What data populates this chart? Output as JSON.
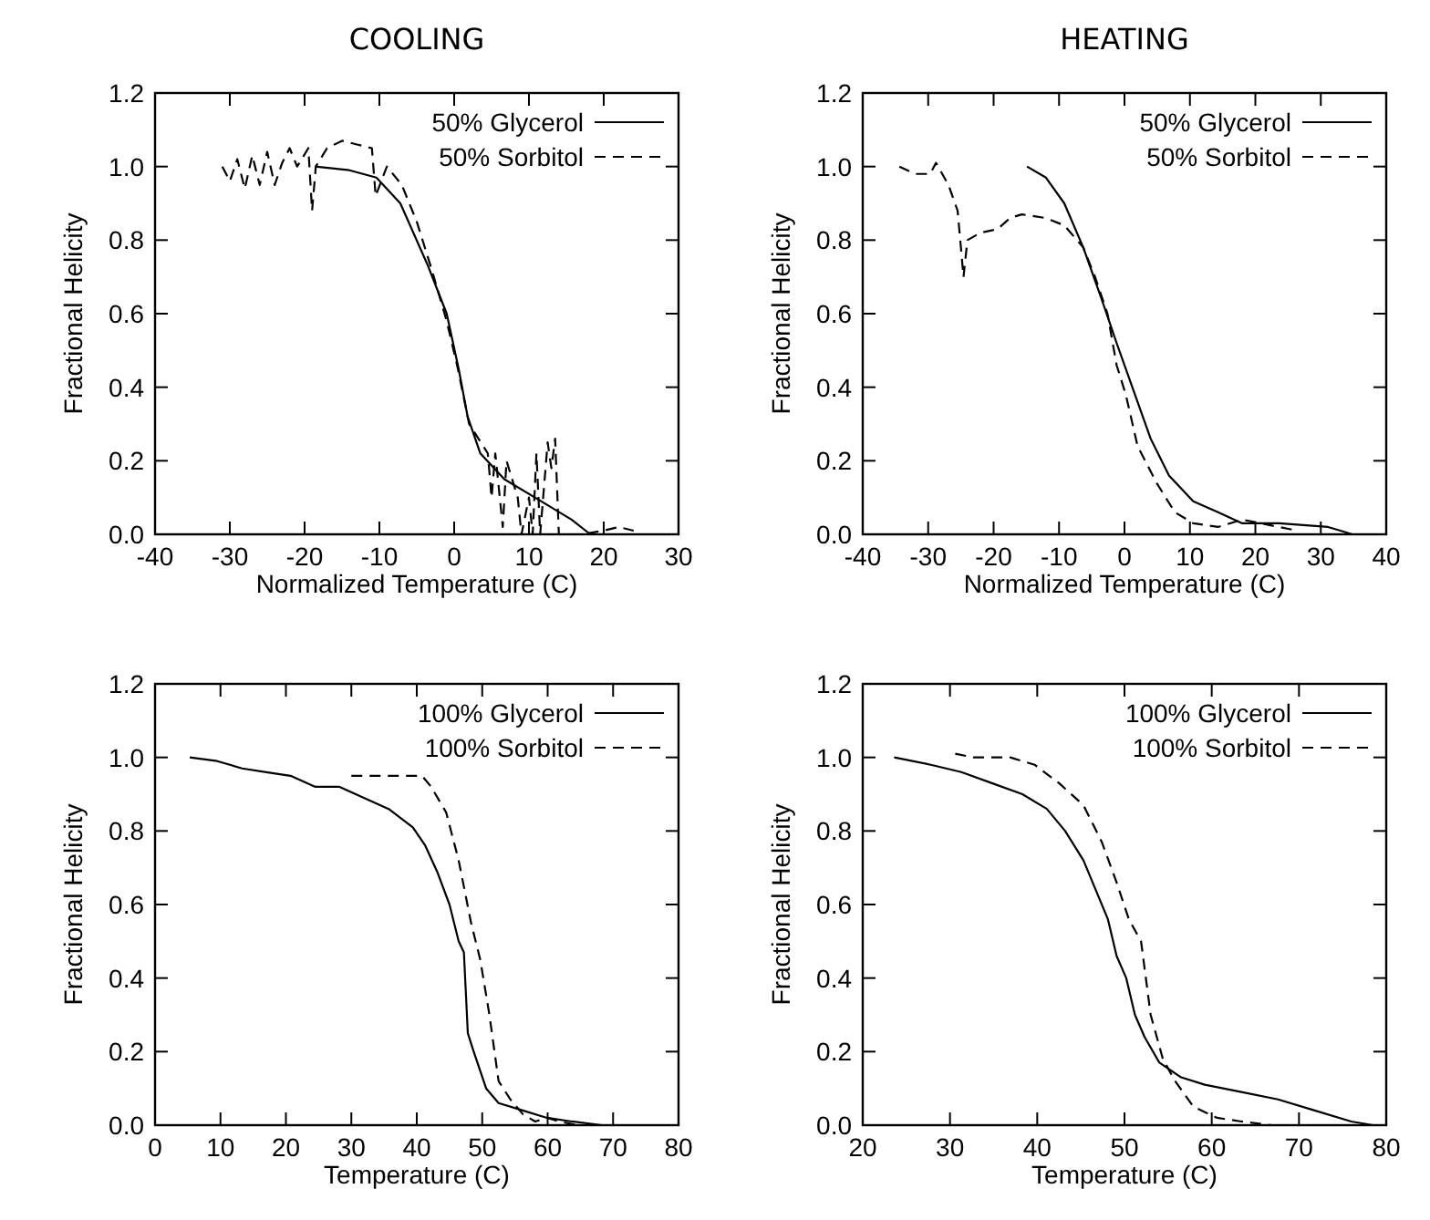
{
  "chart_data": [
    {
      "type": "line",
      "title": "COOLING",
      "xlabel": "Normalized Temperature (C)",
      "ylabel": "Fractional Helicity",
      "xlim": [
        -40,
        30
      ],
      "xticks": [
        -40,
        -30,
        -20,
        -10,
        0,
        10,
        20,
        30
      ],
      "ylim": [
        0,
        1.2
      ],
      "yticks": [
        {
          "value": 0,
          "label": "0.0"
        },
        {
          "value": 0.2,
          "label": "0.2"
        },
        {
          "value": 0.4,
          "label": "0.4"
        },
        {
          "value": 0.6,
          "label": "0.6"
        },
        {
          "value": 0.8,
          "label": "0.8"
        },
        {
          "value": 1,
          "label": "1.0"
        },
        {
          "value": 1.2,
          "label": "1.2"
        }
      ],
      "legend": "top right",
      "grid": false,
      "series": [
        {
          "name": "50% Glycerol",
          "color": "#000000",
          "line_style": "solid",
          "x": [
            -18.6,
            -14,
            -10.4,
            -7.2,
            -3.5,
            -1,
            0.6,
            1.8,
            3.5,
            6.7,
            10.8,
            15.7,
            18.2,
            24.3
          ],
          "values": [
            1.0,
            0.99,
            0.97,
            0.9,
            0.73,
            0.6,
            0.45,
            0.32,
            0.22,
            0.15,
            0.1,
            0.04,
            0.0,
            0.0
          ]
        },
        {
          "name": "50% Sorbitol",
          "color": "#000000",
          "line_style": "dashed",
          "x": [
            -31,
            -30,
            -29,
            -28,
            -27,
            -26,
            -25,
            -24,
            -23,
            -22,
            -21,
            -19.5,
            -19,
            -18.5,
            -17,
            -15,
            -13,
            -11,
            -10.5,
            -9,
            -7,
            -5,
            -3,
            -1,
            0.5,
            2,
            4.5,
            5,
            5.5,
            6.5,
            7,
            8.5,
            9,
            10,
            10.5,
            11,
            11.5,
            12.5,
            13,
            13.5,
            14,
            17,
            20,
            22,
            24
          ],
          "values": [
            1.0,
            0.96,
            1.02,
            0.94,
            1.03,
            0.95,
            1.04,
            0.95,
            1.01,
            1.05,
            1.0,
            1.05,
            0.88,
            1.0,
            1.05,
            1.07,
            1.06,
            1.05,
            0.92,
            1.0,
            0.95,
            0.85,
            0.72,
            0.58,
            0.45,
            0.3,
            0.22,
            0.1,
            0.22,
            0.02,
            0.2,
            0.1,
            0.0,
            0.1,
            0.0,
            0.22,
            0.0,
            0.25,
            0.18,
            0.26,
            0.0,
            0.0,
            0.01,
            0.02,
            0.01
          ]
        }
      ]
    },
    {
      "type": "line",
      "title": "HEATING",
      "xlabel": "Normalized Temperature (C)",
      "ylabel": "Fractional Helicity",
      "xlim": [
        -40,
        40
      ],
      "xticks": [
        -40,
        -30,
        -20,
        -10,
        0,
        10,
        20,
        30,
        40
      ],
      "ylim": [
        0,
        1.2
      ],
      "yticks": [
        {
          "value": 0,
          "label": "0.0"
        },
        {
          "value": 0.2,
          "label": "0.2"
        },
        {
          "value": 0.4,
          "label": "0.4"
        },
        {
          "value": 0.6,
          "label": "0.6"
        },
        {
          "value": 0.8,
          "label": "0.8"
        },
        {
          "value": 1,
          "label": "1.0"
        },
        {
          "value": 1.2,
          "label": "1.2"
        }
      ],
      "legend": "top right",
      "grid": false,
      "series": [
        {
          "name": "50% Glycerol",
          "color": "#000000",
          "line_style": "solid",
          "x": [
            -14.9,
            -12,
            -9.2,
            -6.3,
            -3.5,
            -1.2,
            1.2,
            4,
            6.8,
            10.5,
            14.3,
            18,
            23.6,
            31.1,
            33,
            34.8
          ],
          "values": [
            1.0,
            0.97,
            0.9,
            0.78,
            0.64,
            0.52,
            0.4,
            0.26,
            0.16,
            0.09,
            0.06,
            0.03,
            0.03,
            0.02,
            0.01,
            0.0
          ]
        },
        {
          "name": "50% Sorbitol",
          "color": "#000000",
          "line_style": "dashed",
          "x": [
            -34.4,
            -32,
            -29.7,
            -28.8,
            -26.9,
            -25.5,
            -24.6,
            -24,
            -22,
            -19.4,
            -17.5,
            -15.7,
            -12,
            -9.2,
            -6.3,
            -4.5,
            -2.6,
            -1.2,
            0.2,
            2,
            4.9,
            7.7,
            10.5,
            14.3,
            18,
            23.6,
            26.4
          ],
          "values": [
            1.0,
            0.98,
            0.98,
            1.01,
            0.95,
            0.88,
            0.7,
            0.8,
            0.82,
            0.83,
            0.86,
            0.87,
            0.86,
            0.84,
            0.78,
            0.7,
            0.6,
            0.46,
            0.38,
            0.24,
            0.14,
            0.06,
            0.03,
            0.02,
            0.04,
            0.02,
            0.01
          ]
        }
      ]
    },
    {
      "type": "line",
      "xlabel": "Temperature (C)",
      "ylabel": "Fractional Helicity",
      "xlim": [
        0,
        80
      ],
      "xticks": [
        0,
        10,
        20,
        30,
        40,
        50,
        60,
        70,
        80
      ],
      "ylim": [
        0,
        1.2
      ],
      "yticks": [
        {
          "value": 0,
          "label": "0.0"
        },
        {
          "value": 0.2,
          "label": "0.2"
        },
        {
          "value": 0.4,
          "label": "0.4"
        },
        {
          "value": 0.6,
          "label": "0.6"
        },
        {
          "value": 0.8,
          "label": "0.8"
        },
        {
          "value": 1,
          "label": "1.0"
        },
        {
          "value": 1.2,
          "label": "1.2"
        }
      ],
      "legend": "top right",
      "grid": false,
      "series": [
        {
          "name": "100% Glycerol",
          "color": "#000000",
          "line_style": "solid",
          "x": [
            5.3,
            9.5,
            13.3,
            17,
            20.7,
            24.5,
            28.2,
            31.9,
            35.7,
            39.4,
            41.3,
            43.1,
            45,
            46.4,
            47.2,
            47.8,
            48.7,
            50.6,
            52.5,
            56.2,
            59.9,
            63.7,
            68.3,
            70.2
          ],
          "values": [
            1.0,
            0.99,
            0.97,
            0.96,
            0.95,
            0.92,
            0.92,
            0.89,
            0.86,
            0.81,
            0.76,
            0.69,
            0.6,
            0.5,
            0.47,
            0.25,
            0.2,
            0.1,
            0.06,
            0.04,
            0.02,
            0.01,
            0.0,
            0.0
          ]
        },
        {
          "name": "100% Sorbitol",
          "color": "#000000",
          "line_style": "dashed",
          "x": [
            30,
            36,
            40.8,
            42.2,
            44.5,
            46.4,
            48.3,
            49.7,
            51.1,
            52.5,
            54.3,
            56.2,
            58.1,
            59.9,
            61.8,
            64.6
          ],
          "values": [
            0.95,
            0.95,
            0.95,
            0.92,
            0.85,
            0.72,
            0.55,
            0.45,
            0.3,
            0.12,
            0.07,
            0.03,
            0.01,
            0.02,
            0.01,
            0.0
          ]
        }
      ]
    },
    {
      "type": "line",
      "xlabel": "Temperature (C)",
      "ylabel": "Fractional Helicity",
      "xlim": [
        20,
        80
      ],
      "xticks": [
        20,
        30,
        40,
        50,
        60,
        70,
        80
      ],
      "ylim": [
        0,
        1.2
      ],
      "yticks": [
        {
          "value": 0,
          "label": "0.0"
        },
        {
          "value": 0.2,
          "label": "0.2"
        },
        {
          "value": 0.4,
          "label": "0.4"
        },
        {
          "value": 0.6,
          "label": "0.6"
        },
        {
          "value": 0.8,
          "label": "0.8"
        },
        {
          "value": 1,
          "label": "1.0"
        },
        {
          "value": 1.2,
          "label": "1.2"
        }
      ],
      "legend": "top right",
      "grid": false,
      "series": [
        {
          "name": "100% Glycerol",
          "color": "#000000",
          "line_style": "solid",
          "x": [
            23.6,
            27.8,
            31.3,
            34.8,
            38.3,
            41.1,
            43.2,
            45.3,
            46.7,
            48.1,
            49.1,
            50.2,
            51.2,
            52.3,
            54,
            56.5,
            59.2,
            63.4,
            67.6,
            71.8,
            76,
            78.5
          ],
          "values": [
            1.0,
            0.98,
            0.96,
            0.93,
            0.9,
            0.86,
            0.8,
            0.72,
            0.64,
            0.56,
            0.46,
            0.4,
            0.3,
            0.24,
            0.17,
            0.13,
            0.11,
            0.09,
            0.07,
            0.04,
            0.01,
            0.0
          ]
        },
        {
          "name": "100% Sorbitol",
          "color": "#000000",
          "line_style": "dashed",
          "x": [
            30.6,
            32.7,
            36.9,
            39.7,
            42.5,
            45.3,
            47.4,
            49.1,
            50.5,
            51.9,
            53,
            54.4,
            55.8,
            57.9,
            60.6,
            63.4,
            66.9
          ],
          "values": [
            1.01,
            1.0,
            1.0,
            0.98,
            0.93,
            0.87,
            0.77,
            0.66,
            0.56,
            0.5,
            0.3,
            0.18,
            0.12,
            0.05,
            0.02,
            0.01,
            0.0
          ]
        }
      ]
    }
  ]
}
